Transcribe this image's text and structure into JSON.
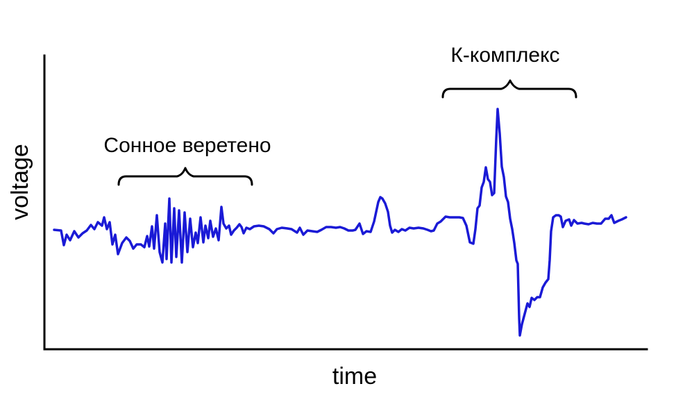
{
  "diagram": {
    "xlabel": "time",
    "ylabel": "voltage",
    "annotations": {
      "spindle": "Сонное веретено",
      "k_complex": "К-комплекс"
    },
    "colors": {
      "signal": "#1a1ad6",
      "axis": "#000000"
    }
  }
}
